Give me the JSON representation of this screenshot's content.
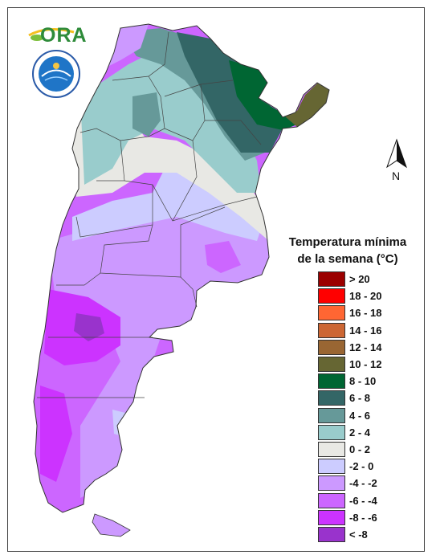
{
  "header": {
    "logo_text": "ORA",
    "seal_text": "SERVICIO METEOROLOGICO NACIONAL ARGENTINA"
  },
  "north": {
    "label": "N"
  },
  "legend": {
    "title_line1": "Temperatura mínima",
    "title_line2": "de la semana (°C)",
    "items": [
      {
        "label": "> 20",
        "color": "#9b0000"
      },
      {
        "label": "18 - 20",
        "color": "#ff0000"
      },
      {
        "label": "16 - 18",
        "color": "#ff6633"
      },
      {
        "label": "14 - 16",
        "color": "#cc6633"
      },
      {
        "label": "12 - 14",
        "color": "#996633"
      },
      {
        "label": "10 - 12",
        "color": "#666633"
      },
      {
        "label": "8 - 10",
        "color": "#006633"
      },
      {
        "label": "6 - 8",
        "color": "#336666"
      },
      {
        "label": "4 - 6",
        "color": "#669999"
      },
      {
        "label": "2 - 4",
        "color": "#99cccc"
      },
      {
        "label": "0 - 2",
        "color": "#e8e8e4"
      },
      {
        "label": "-2 - 0",
        "color": "#ccccff"
      },
      {
        "label": "-4 - -2",
        "color": "#cc99ff"
      },
      {
        "label": "-6 - -4",
        "color": "#cc66ff"
      },
      {
        "label": "-8 - -6",
        "color": "#cc33ff"
      },
      {
        "label": "< -8",
        "color": "#9933cc"
      }
    ]
  }
}
